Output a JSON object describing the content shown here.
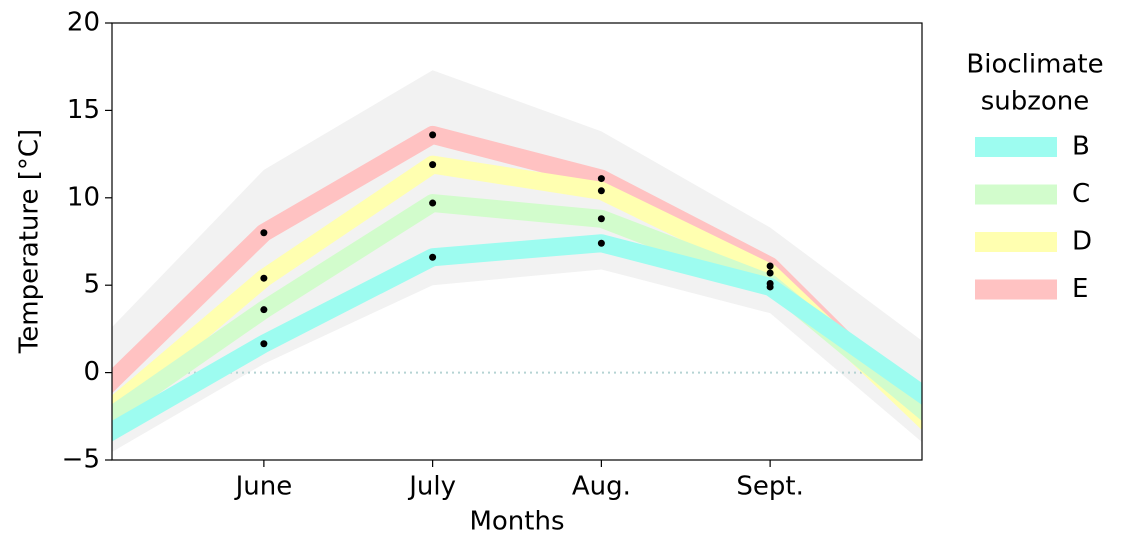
{
  "chart_data": {
    "type": "line",
    "x_label": "Months",
    "y_label": "Temperature [°C]",
    "legend_title": [
      "Bioclimate",
      "subzone"
    ],
    "legend_position": "right",
    "x": [
      5,
      6,
      7,
      8,
      9,
      10
    ],
    "xlim": [
      5.1,
      9.9
    ],
    "xticks": [
      {
        "value": 6,
        "label": "June"
      },
      {
        "value": 7,
        "label": "July"
      },
      {
        "value": 8,
        "label": "Aug."
      },
      {
        "value": 9,
        "label": "Sept."
      }
    ],
    "ylim": [
      -5,
      20
    ],
    "yticks": [
      {
        "value": -5,
        "label": "−5"
      },
      0,
      5,
      10,
      15,
      20
    ],
    "reference_line": 0,
    "envelope": {
      "color": "#f2f2f2",
      "lower": [
        -5.1,
        0.5,
        5.0,
        5.9,
        3.4,
        -4.8
      ],
      "upper": [
        1.6,
        11.6,
        17.3,
        13.8,
        8.3,
        1.1
      ]
    },
    "series": [
      {
        "name": "B",
        "color": "#9dfcf0",
        "values": [
          -3.9,
          1.65,
          6.6,
          7.4,
          4.9,
          -1.9
        ]
      },
      {
        "name": "C",
        "color": "#d2fccc",
        "values": [
          -3.1,
          3.6,
          9.7,
          8.8,
          5.1,
          -2.9
        ]
      },
      {
        "name": "D",
        "color": "#ffffb0",
        "values": [
          -2.8,
          5.4,
          11.9,
          10.4,
          5.7,
          -3.5
        ]
      },
      {
        "name": "E",
        "color": "#ffc2c2",
        "values": [
          -1.4,
          8.0,
          13.6,
          11.1,
          6.1,
          -3.5
        ]
      }
    ]
  }
}
